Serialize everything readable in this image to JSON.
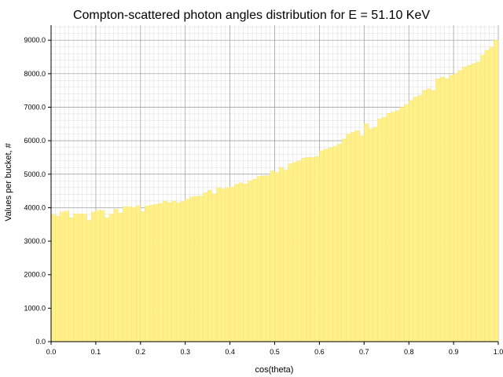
{
  "chart_data": {
    "type": "bar",
    "title": "Compton-scattered photon angles distribution for E = 51.10 KeV",
    "xlabel": "cos(theta)",
    "ylabel": "Values per bucket, #",
    "xlim": [
      0.0,
      1.0
    ],
    "ylim": [
      0,
      9450
    ],
    "x_ticks": [
      "0.0",
      "0.1",
      "0.2",
      "0.3",
      "0.4",
      "0.5",
      "0.6",
      "0.7",
      "0.8",
      "0.9",
      "1.0"
    ],
    "y_ticks": [
      "0.0",
      "1000.0",
      "2000.0",
      "3000.0",
      "4000.0",
      "5000.0",
      "6000.0",
      "7000.0",
      "8000.0",
      "9000.0"
    ],
    "grid": true,
    "bins": 100,
    "bar_color": "#fff08a",
    "bar_edge_color": "#f2dc6a",
    "values": [
      3800,
      3750,
      3870,
      3900,
      3700,
      3820,
      3820,
      3810,
      3620,
      3870,
      3920,
      3920,
      3700,
      3810,
      3960,
      3840,
      4030,
      4030,
      4010,
      4060,
      3880,
      4050,
      4080,
      4100,
      4130,
      4200,
      4150,
      4200,
      4150,
      4190,
      4250,
      4320,
      4340,
      4350,
      4450,
      4520,
      4410,
      4600,
      4560,
      4600,
      4620,
      4700,
      4740,
      4710,
      4800,
      4850,
      4930,
      4950,
      4960,
      5100,
      5050,
      5200,
      5120,
      5310,
      5350,
      5400,
      5480,
      5500,
      5510,
      5530,
      5700,
      5750,
      5790,
      5830,
      5900,
      6050,
      6200,
      6250,
      6300,
      6150,
      6500,
      6350,
      6400,
      6650,
      6700,
      6820,
      6850,
      6900,
      7000,
      7080,
      7200,
      7300,
      7350,
      7500,
      7550,
      7500,
      7850,
      7900,
      7850,
      7950,
      8000,
      8100,
      8200,
      8250,
      8300,
      8350,
      8550,
      8700,
      8800,
      9000
    ]
  }
}
